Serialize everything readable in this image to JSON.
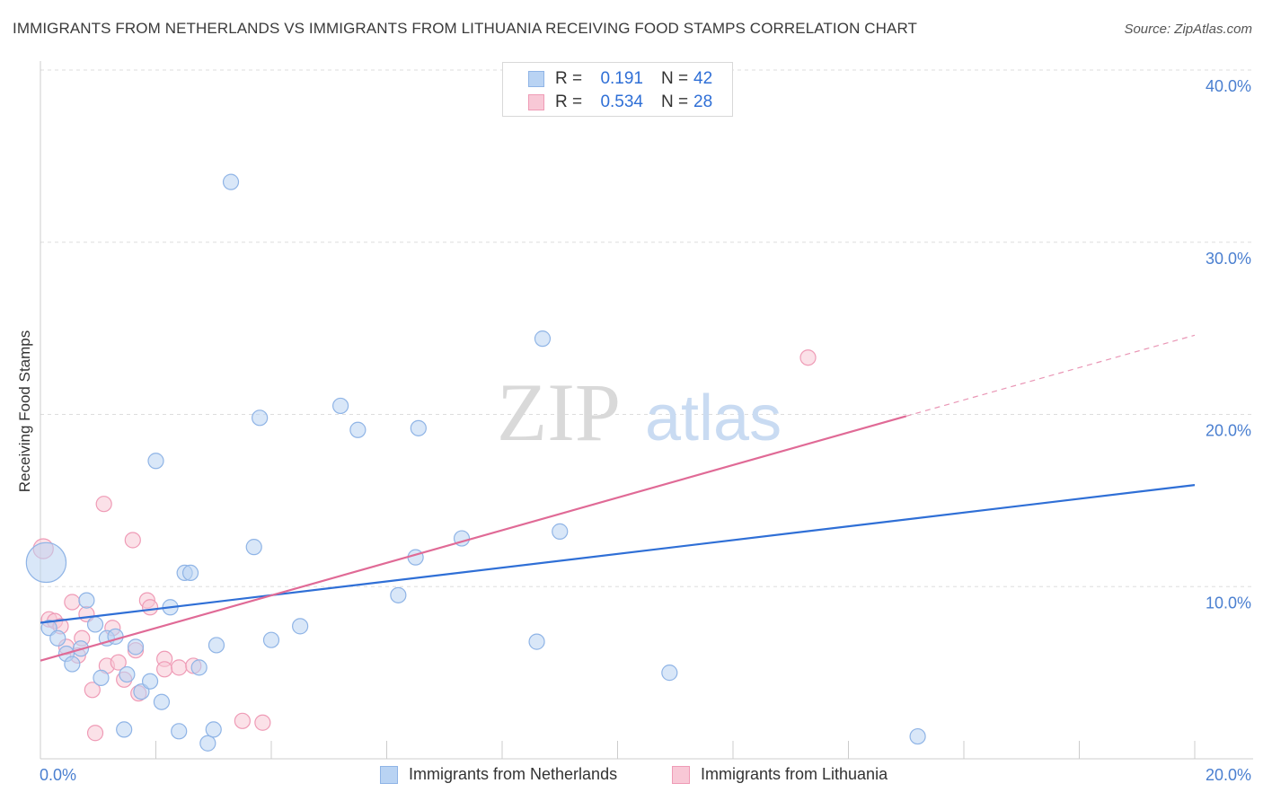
{
  "title": "IMMIGRANTS FROM NETHERLANDS VS IMMIGRANTS FROM LITHUANIA RECEIVING FOOD STAMPS CORRELATION CHART",
  "source": "Source: ZipAtlas.com",
  "watermark": {
    "zip": "ZIP",
    "atlas": "atlas"
  },
  "legend": {
    "netherlands": {
      "r_label": "R =",
      "r_value": "0.191",
      "n_label": "N =",
      "n_value": "42"
    },
    "lithuania": {
      "r_label": "R =",
      "r_value": "0.534",
      "n_label": "N =",
      "n_value": "28"
    }
  },
  "bottom_legend": {
    "netherlands": "Immigrants from Netherlands",
    "lithuania": "Immigrants from Lithuania"
  },
  "colors": {
    "netherlands_fill": "#b9d3f3",
    "netherlands_stroke": "#8fb4e6",
    "netherlands_line": "#2f6fd6",
    "lithuania_fill": "#f8c8d6",
    "lithuania_stroke": "#ef9bb6",
    "lithuania_line": "#e06a96",
    "tick_label": "#4a7fd0",
    "grid": "#dddddd"
  },
  "chart_data": {
    "type": "scatter",
    "title": "IMMIGRANTS FROM NETHERLANDS VS IMMIGRANTS FROM LITHUANIA RECEIVING FOOD STAMPS CORRELATION CHART",
    "xlabel": "",
    "ylabel": "Receiving Food Stamps",
    "xlim": [
      0,
      20
    ],
    "ylim": [
      0,
      40
    ],
    "x_tick_labels": [
      "0.0%",
      "20.0%"
    ],
    "y_ticks": [
      10,
      20,
      30,
      40
    ],
    "y_tick_labels": [
      "10.0%",
      "20.0%",
      "30.0%",
      "40.0%"
    ],
    "legend_position": "top-center",
    "series": [
      {
        "name": "Immigrants from Netherlands",
        "key": "netherlands",
        "r": 0.191,
        "n": 42,
        "trend": {
          "x0": 0,
          "y0": 7.9,
          "x1": 20,
          "y1": 15.9
        },
        "points": [
          [
            0.1,
            11.4,
            2.6
          ],
          [
            0.15,
            7.6,
            1
          ],
          [
            0.3,
            7.0,
            1
          ],
          [
            0.45,
            6.1,
            1
          ],
          [
            0.55,
            5.5,
            1
          ],
          [
            0.7,
            6.4,
            1
          ],
          [
            0.8,
            9.2,
            1
          ],
          [
            0.95,
            7.8,
            1
          ],
          [
            1.05,
            4.7,
            1
          ],
          [
            1.15,
            7.0,
            1
          ],
          [
            1.3,
            7.1,
            1
          ],
          [
            1.45,
            1.7,
            1
          ],
          [
            1.5,
            4.9,
            1
          ],
          [
            1.65,
            6.5,
            1
          ],
          [
            1.75,
            3.9,
            1
          ],
          [
            1.9,
            4.5,
            1
          ],
          [
            2.0,
            17.3,
            1
          ],
          [
            2.1,
            3.3,
            1
          ],
          [
            2.25,
            8.8,
            1
          ],
          [
            2.4,
            1.6,
            1
          ],
          [
            2.5,
            10.8,
            1
          ],
          [
            2.6,
            10.8,
            1
          ],
          [
            2.75,
            5.3,
            1
          ],
          [
            2.9,
            0.9,
            1
          ],
          [
            3.0,
            1.7,
            1
          ],
          [
            3.05,
            6.6,
            1
          ],
          [
            3.3,
            33.5,
            1
          ],
          [
            3.7,
            12.3,
            1
          ],
          [
            3.8,
            19.8,
            1
          ],
          [
            4.0,
            6.9,
            1
          ],
          [
            4.5,
            7.7,
            1
          ],
          [
            5.2,
            20.5,
            1
          ],
          [
            5.5,
            19.1,
            1
          ],
          [
            6.2,
            9.5,
            1
          ],
          [
            6.5,
            11.7,
            1
          ],
          [
            6.55,
            19.2,
            1
          ],
          [
            7.3,
            12.8,
            1
          ],
          [
            8.6,
            6.8,
            1
          ],
          [
            8.7,
            24.4,
            1
          ],
          [
            9.0,
            13.2,
            1
          ],
          [
            10.9,
            5.0,
            1
          ],
          [
            15.2,
            1.3,
            1
          ]
        ]
      },
      {
        "name": "Immigrants from Lithuania",
        "key": "lithuania",
        "r": 0.534,
        "n": 28,
        "trend": {
          "x0": 0,
          "y0": 5.7,
          "x1": 15.0,
          "y1": 19.9
        },
        "trend_dashed": {
          "x0": 15.0,
          "y0": 19.9,
          "x1": 20,
          "y1": 24.6
        },
        "points": [
          [
            0.05,
            12.2,
            1.3
          ],
          [
            0.15,
            8.1,
            1
          ],
          [
            0.25,
            8.0,
            1
          ],
          [
            0.35,
            7.7,
            1
          ],
          [
            0.45,
            6.5,
            1
          ],
          [
            0.55,
            9.1,
            1
          ],
          [
            0.65,
            6.0,
            1
          ],
          [
            0.72,
            7.0,
            1
          ],
          [
            0.8,
            8.4,
            1
          ],
          [
            0.9,
            4.0,
            1
          ],
          [
            0.95,
            1.5,
            1
          ],
          [
            1.1,
            14.8,
            1
          ],
          [
            1.15,
            5.4,
            1
          ],
          [
            1.25,
            7.6,
            1
          ],
          [
            1.35,
            5.6,
            1
          ],
          [
            1.45,
            4.6,
            1
          ],
          [
            1.6,
            12.7,
            1
          ],
          [
            1.65,
            6.3,
            1
          ],
          [
            1.7,
            3.8,
            1
          ],
          [
            1.85,
            9.2,
            1
          ],
          [
            1.9,
            8.8,
            1
          ],
          [
            2.15,
            5.8,
            1
          ],
          [
            2.15,
            5.2,
            1
          ],
          [
            2.4,
            5.3,
            1
          ],
          [
            2.65,
            5.4,
            1
          ],
          [
            3.5,
            2.2,
            1
          ],
          [
            3.85,
            2.1,
            1
          ],
          [
            13.3,
            23.3,
            1
          ]
        ]
      }
    ]
  }
}
